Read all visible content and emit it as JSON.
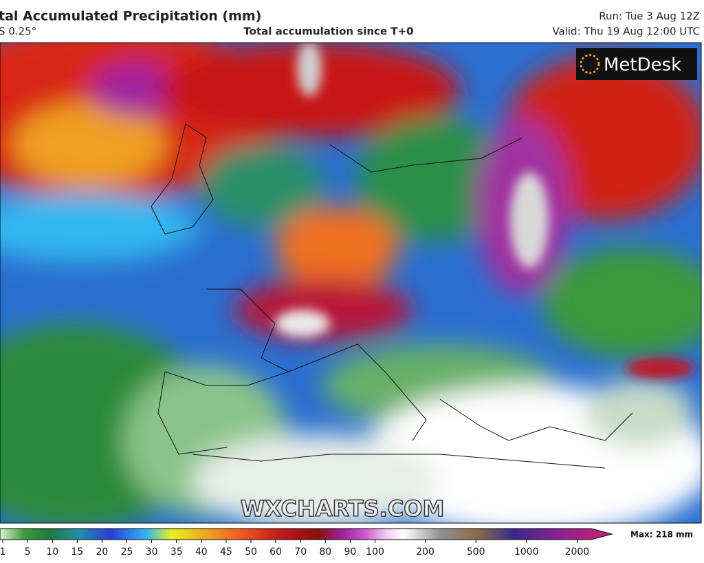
{
  "header": {
    "title": "tal Accumulated Precipitation (mm)",
    "model": "S 0.25°",
    "subtitle": "Total accumulation since T+0",
    "run": "Run: Tue 3 Aug 12Z",
    "valid": "Valid: Thu 19 Aug 12:00 UTC"
  },
  "map": {
    "logo": "MetDesk",
    "watermark": "WXCHARTS.COM"
  },
  "colorbar": {
    "labels": [
      "1",
      "5",
      "10",
      "15",
      "20",
      "25",
      "30",
      "35",
      "40",
      "45",
      "50",
      "60",
      "70",
      "80",
      "90",
      "100",
      "200",
      "500",
      "1000",
      "2000"
    ],
    "max_label": "Max: 218 mm"
  }
}
